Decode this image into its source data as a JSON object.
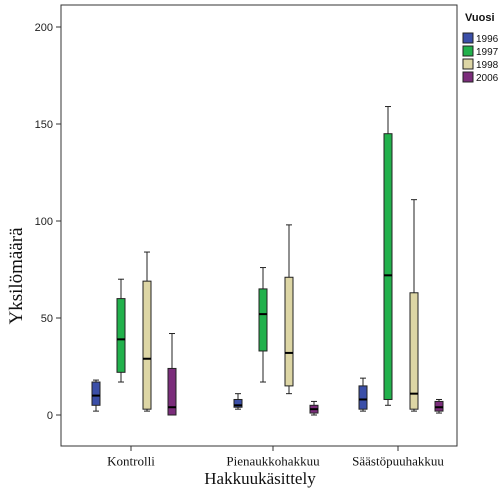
{
  "chart_data": {
    "type": "boxplot",
    "xlabel": "Hakkuukäsittely",
    "ylabel": "Yksilömäärä",
    "ylim": [
      -10,
      210
    ],
    "yticks": [
      0,
      50,
      100,
      150,
      200
    ],
    "grid": false,
    "legend_title": "Vuosi",
    "legend_position": "right",
    "categories": [
      "Kontrolli",
      "Pienaukkohakkuu",
      "Säästöpuuhakkuu"
    ],
    "series": [
      {
        "name": "1996",
        "color": "#3b4fa8",
        "boxes": [
          {
            "min": 2,
            "q1": 5,
            "median": 10,
            "q3": 17,
            "max": 18
          },
          {
            "min": 3,
            "q1": 4,
            "median": 5,
            "q3": 8,
            "max": 11
          },
          {
            "min": 2,
            "q1": 3,
            "median": 8,
            "q3": 15,
            "max": 19
          }
        ]
      },
      {
        "name": "1997",
        "color": "#22b14c",
        "boxes": [
          {
            "min": 17,
            "q1": 22,
            "median": 39,
            "q3": 60,
            "max": 70
          },
          {
            "min": 17,
            "q1": 33,
            "median": 52,
            "q3": 65,
            "max": 76
          },
          {
            "min": 5,
            "q1": 8,
            "median": 72,
            "q3": 145,
            "max": 159
          }
        ]
      },
      {
        "name": "1998",
        "color": "#ddd6a5",
        "boxes": [
          {
            "min": 2,
            "q1": 3,
            "median": 29,
            "q3": 69,
            "max": 84
          },
          {
            "min": 11,
            "q1": 15,
            "median": 32,
            "q3": 71,
            "max": 98
          },
          {
            "min": 2,
            "q1": 3,
            "median": 11,
            "q3": 63,
            "max": 111
          }
        ]
      },
      {
        "name": "2006",
        "color": "#7b2d7b",
        "boxes": [
          {
            "min": 0,
            "q1": 0,
            "median": 4,
            "q3": 24,
            "max": 42
          },
          {
            "min": 0,
            "q1": 1,
            "median": 3,
            "q3": 5,
            "max": 7
          },
          {
            "min": 1,
            "q1": 2,
            "median": 4,
            "q3": 7,
            "max": 8
          }
        ]
      }
    ]
  }
}
